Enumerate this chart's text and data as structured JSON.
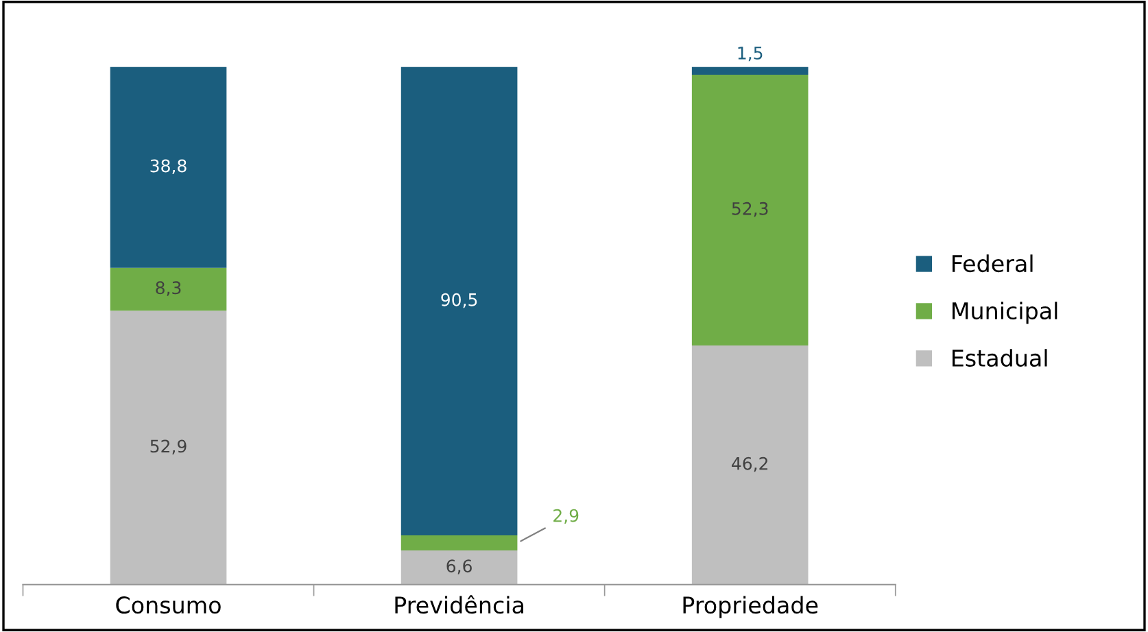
{
  "chart_data": {
    "type": "bar",
    "stacked": true,
    "categories": [
      "Consumo",
      "Previdência",
      "Propriedade"
    ],
    "series": [
      {
        "name": "Estadual",
        "color": "#bfbfbf",
        "values": [
          52.9,
          6.6,
          46.2
        ],
        "value_labels": [
          "52,9",
          "6,6",
          "46,2"
        ]
      },
      {
        "name": "Municipal",
        "color": "#70ad47",
        "values": [
          8.3,
          2.9,
          52.3
        ],
        "value_labels": [
          "8,3",
          "2,9",
          "52,3"
        ]
      },
      {
        "name": "Federal",
        "color": "#1b5e7e",
        "values": [
          38.8,
          90.5,
          1.5
        ],
        "value_labels": [
          "38,8",
          "90,5",
          "1,5"
        ]
      }
    ],
    "legend": "right",
    "grid": false
  }
}
